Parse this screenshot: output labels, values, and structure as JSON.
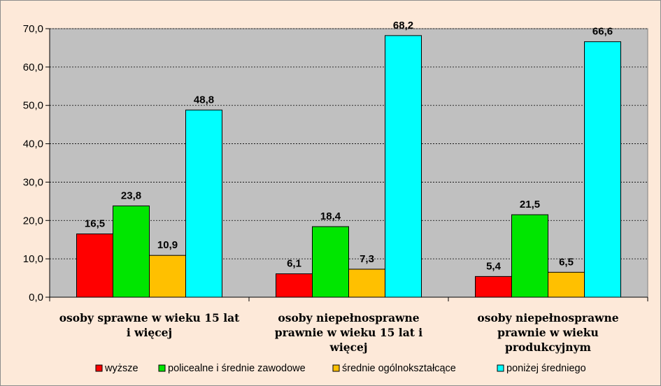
{
  "chart_data": {
    "type": "bar",
    "title": "",
    "xlabel": "",
    "ylabel": "",
    "ylim": [
      0,
      70
    ],
    "y_ticks": [
      "0,0",
      "10,0",
      "20,0",
      "30,0",
      "40,0",
      "50,0",
      "60,0",
      "70,0"
    ],
    "grid": true,
    "legend_placement": "bottom",
    "categories": [
      [
        "osoby sprawne w wieku 15 lat",
        "i więcej"
      ],
      [
        "osoby niepełnosprawne",
        "prawnie w wieku 15 lat i",
        "więcej"
      ],
      [
        "osoby niepełnosprawne",
        "prawnie w wieku",
        "produkcyjnym"
      ]
    ],
    "series": [
      {
        "name": "wyższe",
        "color": "#ff0000",
        "values": [
          16.5,
          6.1,
          5.4
        ],
        "labels": [
          "16,5",
          "6,1",
          "5,4"
        ]
      },
      {
        "name": "policealne i średnie zawodowe",
        "color": "#00e600",
        "values": [
          23.8,
          18.4,
          21.5
        ],
        "labels": [
          "23,8",
          "18,4",
          "21,5"
        ]
      },
      {
        "name": "średnie ogólnokształcące",
        "color": "#ffc000",
        "values": [
          10.9,
          7.3,
          6.5
        ],
        "labels": [
          "10,9",
          "7,3",
          "6,5"
        ]
      },
      {
        "name": "poniżej średniego",
        "color": "#00ffff",
        "values": [
          48.8,
          68.2,
          66.6
        ],
        "labels": [
          "48,8",
          "68,2",
          "66,6"
        ]
      }
    ],
    "plot_background": "#c0c0c0"
  }
}
